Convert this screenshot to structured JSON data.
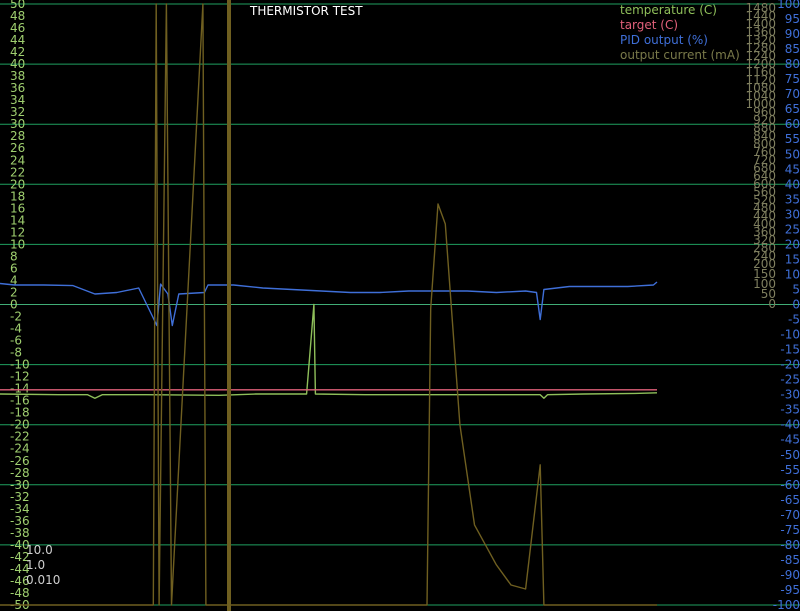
{
  "title": "THERMISTOR TEST",
  "legend": [
    {
      "label": "temperature (C)",
      "color": "#8fbf5a"
    },
    {
      "label": "target (C)",
      "color": "#e0607a"
    },
    {
      "label": "PID output (%)",
      "color": "#3f6fd8"
    },
    {
      "label": "output current (mA)",
      "color": "#7a7a4a"
    }
  ],
  "pid_params": [
    "10.0",
    "1.0",
    "0.010"
  ],
  "colors": {
    "background": "#000000",
    "grid": "#1f9f5f",
    "zero_line": "#000000",
    "temperature": "#8fbf5a",
    "target": "#e0607a",
    "pid": "#3f6fd8",
    "current": "#6f5f20",
    "current_spike": "#a07a4a",
    "left_ticks": "#9fcf6f",
    "right_ticks": "#3f6fd8",
    "current_ticks": "#7f7f5f"
  },
  "chart_data": {
    "type": "line",
    "title": "THERMISTOR TEST",
    "x_range": [
      0,
      1000
    ],
    "y_left": {
      "label": "temperature (C)",
      "ylim": [
        -50,
        50
      ],
      "ticks": [
        "50",
        "48",
        "46",
        "44",
        "42",
        "40",
        "38",
        "36",
        "34",
        "32",
        "30",
        "28",
        "26",
        "24",
        "22",
        "20",
        "18",
        "16",
        "14",
        "12",
        "10",
        "8",
        "6",
        "4",
        "2",
        "0",
        "-2",
        "-4",
        "-6",
        "-8",
        "-10",
        "-12",
        "-14",
        "-16",
        "-18",
        "-20",
        "-22",
        "-24",
        "-26",
        "-28",
        "-30",
        "-32",
        "-34",
        "-36",
        "-38",
        "-40",
        "-42",
        "-44",
        "-46",
        "-48",
        "-50"
      ]
    },
    "y_right": {
      "label": "PID output (%)",
      "ylim": [
        -100,
        100
      ],
      "ticks": [
        "100",
        "95",
        "90",
        "85",
        "80",
        "75",
        "70",
        "65",
        "60",
        "55",
        "50",
        "45",
        "40",
        "35",
        "30",
        "25",
        "20",
        "15",
        "10",
        "5",
        "0",
        "-5",
        "-10",
        "-15",
        "-20",
        "-25",
        "-30",
        "-35",
        "-40",
        "-45",
        "-50",
        "-55",
        "-60",
        "-65",
        "-70",
        "-75",
        "-80",
        "-85",
        "-90",
        "-95",
        "-100"
      ]
    },
    "y_current": {
      "label": "output current (mA)",
      "ylim": [
        0,
        1500
      ],
      "ticks": [
        "1480",
        "1440",
        "1400",
        "1360",
        "1320",
        "1280",
        "1240",
        "1200",
        "1160",
        "1120",
        "1080",
        "1040",
        "1000",
        "960",
        "920",
        "880",
        "840",
        "800",
        "760",
        "720",
        "680",
        "640",
        "600",
        "560",
        "520",
        "480",
        "440",
        "400",
        "360",
        "320",
        "280",
        "240",
        "200",
        "150",
        "100",
        "50",
        "0"
      ]
    },
    "grid": true,
    "legend_position": "top-right",
    "series": [
      {
        "name": "temperature (C)",
        "axis": "left",
        "color": "#8fbf5a",
        "points": [
          [
            0,
            -14.9
          ],
          [
            80,
            -15.0
          ],
          [
            120,
            -15.0
          ],
          [
            130,
            -15.6
          ],
          [
            140,
            -15.0
          ],
          [
            200,
            -15.0
          ],
          [
            300,
            -15.1
          ],
          [
            350,
            -14.9
          ],
          [
            400,
            -14.9
          ],
          [
            420,
            -14.9
          ],
          [
            430,
            0
          ],
          [
            432,
            -14.9
          ],
          [
            500,
            -15.0
          ],
          [
            600,
            -15.0
          ],
          [
            700,
            -15.0
          ],
          [
            740,
            -15.0
          ],
          [
            745,
            -15.6
          ],
          [
            750,
            -15.0
          ],
          [
            800,
            -14.9
          ],
          [
            870,
            -14.8
          ],
          [
            900,
            -14.7
          ]
        ]
      },
      {
        "name": "target (C)",
        "axis": "left",
        "color": "#e0607a",
        "points": [
          [
            0,
            -14.2
          ],
          [
            900,
            -14.2
          ]
        ]
      },
      {
        "name": "PID output (%)",
        "axis": "right",
        "color": "#3f6fd8",
        "points": [
          [
            0,
            7.0
          ],
          [
            20,
            6.5
          ],
          [
            60,
            6.5
          ],
          [
            100,
            6.3
          ],
          [
            130,
            3.5
          ],
          [
            160,
            4.0
          ],
          [
            190,
            5.5
          ],
          [
            215,
            -7.0
          ],
          [
            220,
            6.8
          ],
          [
            230,
            3.5
          ],
          [
            236,
            -7.0
          ],
          [
            245,
            3.5
          ],
          [
            280,
            4.0
          ],
          [
            285,
            6.5
          ],
          [
            320,
            6.5
          ],
          [
            360,
            5.5
          ],
          [
            400,
            5.0
          ],
          [
            440,
            4.5
          ],
          [
            480,
            4.0
          ],
          [
            520,
            4.0
          ],
          [
            560,
            4.5
          ],
          [
            600,
            4.5
          ],
          [
            640,
            4.5
          ],
          [
            680,
            4.0
          ],
          [
            720,
            4.5
          ],
          [
            735,
            4.0
          ],
          [
            740,
            -5.0
          ],
          [
            745,
            5.0
          ],
          [
            780,
            6.0
          ],
          [
            820,
            6.0
          ],
          [
            860,
            6.0
          ],
          [
            895,
            6.5
          ],
          [
            900,
            7.5
          ]
        ]
      },
      {
        "name": "output current (mA)",
        "axis": "current",
        "color": "#6f5f20",
        "points": [
          [
            0,
            -750
          ],
          [
            210,
            -750
          ],
          [
            214,
            1500
          ],
          [
            218,
            -750
          ],
          [
            228,
            1500
          ],
          [
            235,
            -750
          ],
          [
            278,
            1500
          ],
          [
            282,
            -750
          ],
          [
            585,
            -750
          ],
          [
            590,
            -10
          ],
          [
            600,
            500
          ],
          [
            610,
            400
          ],
          [
            630,
            -300
          ],
          [
            650,
            -550
          ],
          [
            680,
            -650
          ],
          [
            700,
            -700
          ],
          [
            720,
            -710
          ],
          [
            740,
            -400
          ],
          [
            745,
            -750
          ],
          [
            900,
            -750
          ]
        ]
      }
    ]
  }
}
